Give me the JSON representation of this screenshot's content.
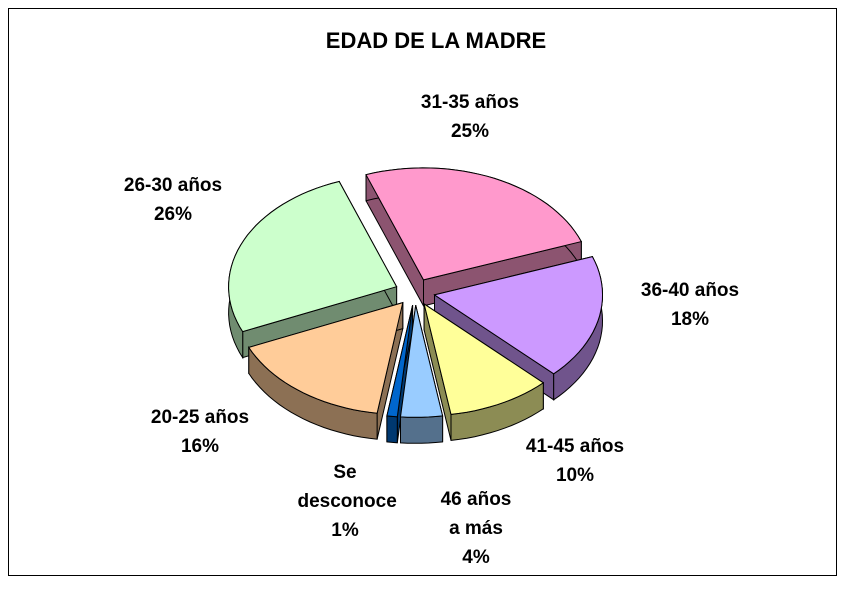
{
  "chart_data": {
    "type": "pie",
    "title": "EDAD DE LA MADRE",
    "categories": [
      "31-35 años",
      "36-40 años",
      "41-45 años",
      "46 años a más",
      "Se desconoce",
      "20-25 años",
      "26-30 años"
    ],
    "values": [
      25,
      18,
      10,
      4,
      1,
      16,
      26
    ],
    "value_labels": [
      "25%",
      "18%",
      "10%",
      "4%",
      "1%",
      "16%",
      "26%"
    ],
    "colors": [
      "#ff99cc",
      "#cc99ff",
      "#ffff99",
      "#99ccff",
      "#0066cc",
      "#ffcc99",
      "#ccffcc"
    ]
  }
}
